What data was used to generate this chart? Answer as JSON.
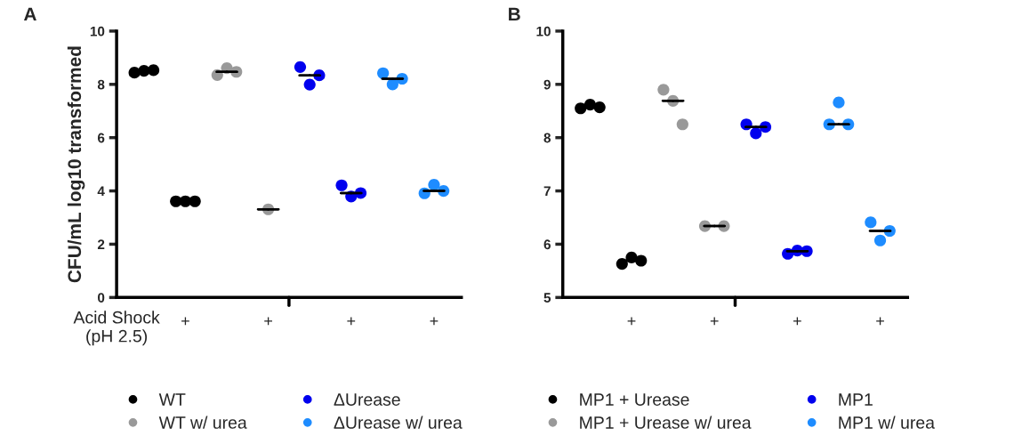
{
  "chart_data": [
    {
      "type": "scatter",
      "title": "A",
      "ylabel": "CFU/mL log10 transformed",
      "ylim": [
        0,
        10
      ],
      "yticks": [
        0,
        2,
        4,
        6,
        8,
        10
      ],
      "categories": [
        null,
        "+",
        null,
        "+",
        null,
        "+",
        null,
        "+"
      ],
      "marker": "circle",
      "legend": "bottom",
      "annotations": [
        "Acid Shock\n(pH 2.5)"
      ],
      "series": [
        {
          "name": "WT",
          "color": "#000000",
          "values": [
            8.44,
            3.61,
            null,
            null,
            null,
            null,
            null,
            null
          ]
        },
        {
          "color": "#000000",
          "values": [
            8.51,
            3.61,
            null,
            null,
            null,
            null,
            null,
            null
          ]
        },
        {
          "color": "#000000",
          "values": [
            8.53,
            3.61,
            null,
            null,
            null,
            null,
            null,
            null
          ]
        },
        {
          "name": "WT w/ urea",
          "color": "#999999",
          "values": [
            null,
            null,
            8.35,
            null,
            null,
            null,
            null,
            null
          ]
        },
        {
          "color": "#999999",
          "values": [
            null,
            null,
            8.61,
            3.31,
            null,
            null,
            null,
            null
          ]
        },
        {
          "color": "#999999",
          "values": [
            null,
            null,
            8.47,
            null,
            null,
            null,
            null,
            null
          ]
        },
        {
          "name": "ΔUrease",
          "color": "#0000ee",
          "values": [
            null,
            null,
            null,
            null,
            8.65,
            4.21,
            null,
            null
          ]
        },
        {
          "color": "#0000ee",
          "values": [
            null,
            null,
            null,
            null,
            7.99,
            3.79,
            null,
            null
          ]
        },
        {
          "color": "#0000ee",
          "values": [
            null,
            null,
            null,
            null,
            8.34,
            3.92,
            null,
            null
          ]
        },
        {
          "name": "ΔUrease w/ urea",
          "color": "#1e8cff",
          "values": [
            null,
            null,
            null,
            null,
            null,
            null,
            8.42,
            3.91
          ]
        },
        {
          "color": "#1e8cff",
          "values": [
            null,
            null,
            null,
            null,
            null,
            null,
            8.0,
            4.23
          ]
        },
        {
          "color": "#1e8cff",
          "values": [
            null,
            null,
            null,
            null,
            null,
            null,
            8.21,
            4.0
          ]
        },
        {
          "type": "box",
          "color": "#000000",
          "boxes": [
            {
              "low": 8.51,
              "q1": 8.51,
              "median": 8.51,
              "q3": 8.51,
              "high": 8.51
            },
            {
              "low": 3.61,
              "q1": 3.61,
              "median": 3.61,
              "q3": 3.61,
              "high": 3.61
            },
            {
              "low": 8.47,
              "q1": 8.47,
              "median": 8.47,
              "q3": 8.47,
              "high": 8.47
            },
            {
              "low": 3.31,
              "q1": 3.31,
              "median": 3.31,
              "q3": 3.31,
              "high": 3.31
            },
            {
              "low": 8.34,
              "q1": 8.34,
              "median": 8.34,
              "q3": 8.34,
              "high": 8.34
            },
            {
              "low": 3.92,
              "q1": 3.92,
              "median": 3.92,
              "q3": 3.92,
              "high": 3.92
            },
            {
              "low": 8.21,
              "q1": 8.21,
              "median": 8.21,
              "q3": 8.21,
              "high": 8.21
            },
            {
              "low": 4.0,
              "q1": 4.0,
              "median": 4.0,
              "q3": 4.0,
              "high": 4.0
            }
          ]
        }
      ]
    },
    {
      "type": "scatter",
      "title": "B",
      "ylim": [
        5,
        10
      ],
      "yticks": [
        5,
        6,
        7,
        8,
        9,
        10
      ],
      "categories": [
        null,
        "+",
        null,
        "+",
        null,
        "+",
        null,
        "+"
      ],
      "marker": "circle",
      "legend": "bottom",
      "series": [
        {
          "name": "MP1 + Urease",
          "color": "#000000",
          "values": [
            8.55,
            5.63,
            null,
            null,
            null,
            null,
            null,
            null
          ]
        },
        {
          "color": "#000000",
          "values": [
            8.62,
            5.75,
            null,
            null,
            null,
            null,
            null,
            null
          ]
        },
        {
          "color": "#000000",
          "values": [
            8.57,
            5.69,
            null,
            null,
            null,
            null,
            null,
            null
          ]
        },
        {
          "name": "MP1 + Urease w/ urea",
          "color": "#999999",
          "values": [
            null,
            null,
            8.9,
            6.34,
            null,
            null,
            null,
            null
          ]
        },
        {
          "color": "#999999",
          "values": [
            null,
            null,
            8.69,
            null,
            null,
            null,
            null,
            null
          ]
        },
        {
          "color": "#999999",
          "values": [
            null,
            null,
            8.25,
            6.34,
            null,
            null,
            null,
            null
          ]
        },
        {
          "name": "MP1",
          "color": "#0000ee",
          "values": [
            null,
            null,
            null,
            null,
            8.25,
            5.82,
            null,
            null
          ]
        },
        {
          "color": "#0000ee",
          "values": [
            null,
            null,
            null,
            null,
            8.08,
            5.88,
            null,
            null
          ]
        },
        {
          "color": "#0000ee",
          "values": [
            null,
            null,
            null,
            null,
            8.2,
            5.87,
            null,
            null
          ]
        },
        {
          "name": "MP1 w/ urea",
          "color": "#1e8cff",
          "values": [
            null,
            null,
            null,
            null,
            null,
            null,
            8.25,
            6.41
          ]
        },
        {
          "color": "#1e8cff",
          "values": [
            null,
            null,
            null,
            null,
            null,
            null,
            8.66,
            6.07
          ]
        },
        {
          "color": "#1e8cff",
          "values": [
            null,
            null,
            null,
            null,
            null,
            null,
            8.25,
            6.25
          ]
        },
        {
          "type": "box",
          "color": "#000000",
          "boxes": [
            {
              "low": 8.57,
              "q1": 8.57,
              "median": 8.57,
              "q3": 8.57,
              "high": 8.57
            },
            {
              "low": 5.69,
              "q1": 5.69,
              "median": 5.69,
              "q3": 5.69,
              "high": 5.69
            },
            {
              "low": 8.69,
              "q1": 8.69,
              "median": 8.69,
              "q3": 8.69,
              "high": 8.69
            },
            {
              "low": 6.34,
              "q1": 6.34,
              "median": 6.34,
              "q3": 6.34,
              "high": 6.34
            },
            {
              "low": 8.2,
              "q1": 8.2,
              "median": 8.2,
              "q3": 8.2,
              "high": 8.2
            },
            {
              "low": 5.87,
              "q1": 5.87,
              "median": 5.87,
              "q3": 5.87,
              "high": 5.87
            },
            {
              "low": 8.25,
              "q1": 8.25,
              "median": 8.25,
              "q3": 8.25,
              "high": 8.25
            },
            {
              "low": 6.25,
              "q1": 6.25,
              "median": 6.25,
              "q3": 6.25,
              "high": 6.25
            }
          ]
        }
      ]
    }
  ]
}
